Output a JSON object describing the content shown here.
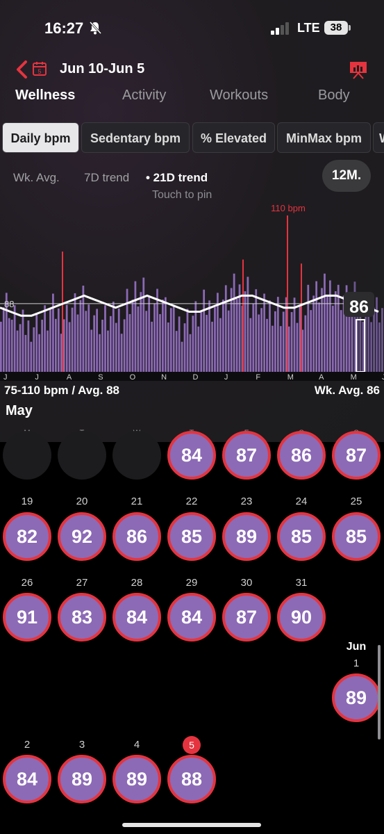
{
  "status": {
    "time": "16:27",
    "network": "LTE",
    "battery": "38"
  },
  "header": {
    "title": "Jun 10-Jun 5",
    "calendar_day": "5"
  },
  "main_tabs": [
    "Wellness",
    "Activity",
    "Workouts",
    "Body"
  ],
  "sub_tabs": [
    "Daily bpm",
    "Sedentary bpm",
    "% Elevated",
    "MinMax bpm",
    "W"
  ],
  "trend_options": [
    "Wk. Avg.",
    "7D trend",
    "• 21D trend"
  ],
  "touch_hint": "Touch to pin",
  "range_button": "12M.",
  "colors": {
    "accent": "#e5343f",
    "bar": "#8c6ab6",
    "card": "#1c1c1e"
  },
  "chart_data": {
    "type": "bar",
    "peak_label": "110 bpm",
    "avg_line_label": "88",
    "current_value": "86",
    "x_tick_labels": [
      "J",
      "J",
      "A",
      "S",
      "O",
      "N",
      "D",
      "J",
      "F",
      "M",
      "A",
      "M",
      "J"
    ],
    "summary_left": "75-110 bpm / Avg. 88",
    "summary_right": "Wk. Avg. 86",
    "ylim": [
      75,
      110
    ],
    "average": 88,
    "peak": 110,
    "series": [
      {
        "values": [
          88,
          84,
          82,
          83,
          84,
          86,
          85,
          87,
          88,
          86,
          84,
          84,
          85,
          89,
          90,
          88,
          89,
          86,
          83,
          84,
          85,
          87,
          88,
          89,
          91,
          92,
          88,
          86,
          87,
          86,
          85,
          86,
          90,
          91,
          92,
          90,
          89,
          88,
          87,
          86
        ]
      },
      {
        "values": [
          87,
          86,
          85,
          85,
          86,
          87,
          88,
          89,
          90,
          89,
          88,
          87,
          88,
          89,
          90,
          89,
          88,
          87,
          86,
          86,
          87,
          88,
          89,
          90,
          90,
          89,
          88,
          87,
          87,
          88,
          89,
          90,
          90,
          89,
          88,
          87,
          86
        ]
      }
    ]
  },
  "calendar": {
    "month": "May",
    "weekdays": [
      "M",
      "T",
      "W",
      "T",
      "F",
      "S",
      "S"
    ],
    "row0": [
      "84",
      "87",
      "86",
      "87"
    ],
    "row1": {
      "days": [
        "19",
        "20",
        "21",
        "22",
        "23",
        "24",
        "25"
      ],
      "values": [
        "82",
        "92",
        "86",
        "85",
        "89",
        "85",
        "85"
      ]
    },
    "row2": {
      "days": [
        "26",
        "27",
        "28",
        "29",
        "30",
        "31"
      ],
      "values": [
        "91",
        "83",
        "84",
        "84",
        "87",
        "90"
      ]
    },
    "row3": {
      "month": "Jun",
      "day": "1",
      "value": "89"
    },
    "row4": {
      "days": [
        "2",
        "3",
        "4",
        "5"
      ],
      "values": [
        "84",
        "89",
        "89",
        "88"
      ]
    }
  }
}
